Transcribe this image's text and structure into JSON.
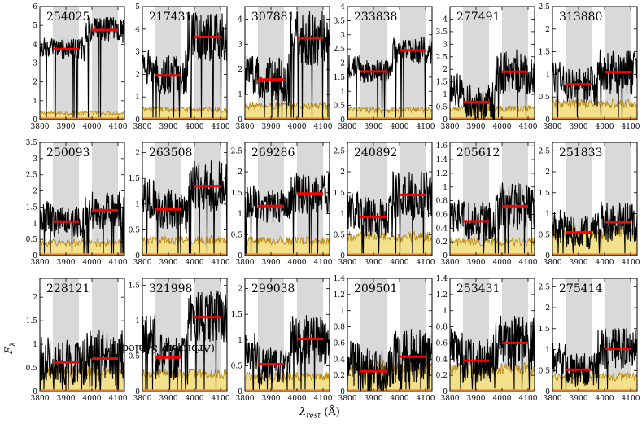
{
  "figure": {
    "xlabel_symbol": "λ",
    "xlabel_sub": "rest",
    "xlabel_unit": " (Å)",
    "ylabel_symbol": "F",
    "ylabel_sub": "λ",
    "ylabel_text": " (Arbitrary Scaled)",
    "colors": {
      "shade": "#d9d9d9",
      "error_fill": "#f3e08a",
      "error_line": "#b8860b",
      "bottom_band": "#e07a2a",
      "mean_line": "#ff0000",
      "spectrum": "#000000"
    }
  },
  "chart_data": [
    {
      "type": "line",
      "title": "254025",
      "x_range": [
        3800,
        4125
      ],
      "ylim": [
        0,
        6.0
      ],
      "yticks": [
        0,
        1,
        2,
        3,
        4,
        5,
        6
      ],
      "xticks": [
        3800,
        3900,
        4000,
        4100
      ],
      "windows": [
        [
          3850,
          3950
        ],
        [
          4000,
          4100
        ]
      ],
      "blue_mean": 3.75,
      "red_mean": 4.75,
      "spectrum_base": 3.8,
      "spectrum_amp": 0.7,
      "err_level": 0.35
    },
    {
      "type": "line",
      "title": "217431",
      "x_range": [
        3800,
        4125
      ],
      "ylim": [
        0,
        5.0
      ],
      "yticks": [
        0,
        1,
        2,
        3,
        4,
        5
      ],
      "xticks": [
        3800,
        3900,
        4000,
        4100
      ],
      "windows": [
        [
          3850,
          3950
        ],
        [
          4000,
          4100
        ]
      ],
      "blue_mean": 1.95,
      "red_mean": 3.65,
      "spectrum_base": 2.2,
      "spectrum_amp": 1.1,
      "err_level": 0.45
    },
    {
      "type": "line",
      "title": "307881",
      "x_range": [
        3800,
        4125
      ],
      "ylim": [
        0,
        4.5
      ],
      "yticks": [
        0,
        1,
        2,
        3,
        4
      ],
      "xticks": [
        3800,
        3900,
        4000,
        4100
      ],
      "windows": [
        [
          3850,
          3950
        ],
        [
          4000,
          4100
        ]
      ],
      "blue_mean": 1.6,
      "red_mean": 3.25,
      "spectrum_base": 1.8,
      "spectrum_amp": 1.1,
      "err_level": 0.55
    },
    {
      "type": "line",
      "title": "233838",
      "x_range": [
        3800,
        4125
      ],
      "ylim": [
        0,
        4.0
      ],
      "yticks": [
        0,
        0.5,
        1.0,
        1.5,
        2.0,
        2.5,
        3.0,
        3.5,
        4.0
      ],
      "xticks": [
        3800,
        3900,
        4000,
        4100
      ],
      "windows": [
        [
          3850,
          3950
        ],
        [
          4000,
          4100
        ]
      ],
      "blue_mean": 1.7,
      "red_mean": 2.45,
      "spectrum_base": 1.9,
      "spectrum_amp": 0.5,
      "err_level": 0.35
    },
    {
      "type": "line",
      "title": "277491",
      "x_range": [
        3800,
        4125
      ],
      "ylim": [
        0,
        4.5
      ],
      "yticks": [
        0,
        0.5,
        1.0,
        1.5,
        2.0,
        2.5,
        3.0,
        3.5,
        4.0
      ],
      "xticks": [
        3800,
        3900,
        4000,
        4100
      ],
      "windows": [
        [
          3850,
          3950
        ],
        [
          4000,
          4100
        ]
      ],
      "blue_mean": 0.7,
      "red_mean": 1.9,
      "spectrum_base": 1.2,
      "spectrum_amp": 0.9,
      "err_level": 0.45
    },
    {
      "type": "line",
      "title": "313880",
      "x_range": [
        3800,
        4125
      ],
      "ylim": [
        0,
        2.5
      ],
      "yticks": [
        0,
        0.5,
        1.0,
        1.5,
        2.0,
        2.5
      ],
      "xticks": [
        3800,
        3900,
        4000,
        4100
      ],
      "windows": [
        [
          3850,
          3950
        ],
        [
          4000,
          4100
        ]
      ],
      "blue_mean": 0.78,
      "red_mean": 1.05,
      "spectrum_base": 0.9,
      "spectrum_amp": 0.5,
      "err_level": 0.35
    },
    {
      "type": "line",
      "title": "250093",
      "x_range": [
        3800,
        4125
      ],
      "ylim": [
        0,
        3.5
      ],
      "yticks": [
        0,
        0.5,
        1.0,
        1.5,
        2.0,
        2.5,
        3.0,
        3.5
      ],
      "xticks": [
        3800,
        3900,
        4000,
        4100
      ],
      "windows": [
        [
          3850,
          3950
        ],
        [
          4000,
          4100
        ]
      ],
      "blue_mean": 1.05,
      "red_mean": 1.4,
      "spectrum_base": 1.2,
      "spectrum_amp": 0.6,
      "err_level": 0.4
    },
    {
      "type": "line",
      "title": "263508",
      "x_range": [
        3800,
        4125
      ],
      "ylim": [
        0,
        2.2
      ],
      "yticks": [
        0,
        0.5,
        1.0,
        1.5,
        2.0
      ],
      "xticks": [
        3800,
        3900,
        4000,
        4100
      ],
      "windows": [
        [
          3850,
          3950
        ],
        [
          4000,
          4100
        ]
      ],
      "blue_mean": 0.9,
      "red_mean": 1.35,
      "spectrum_base": 1.1,
      "spectrum_amp": 0.5,
      "err_level": 0.3
    },
    {
      "type": "line",
      "title": "269286",
      "x_range": [
        3800,
        4125
      ],
      "ylim": [
        0,
        2.7
      ],
      "yticks": [
        0,
        0.5,
        1.0,
        1.5,
        2.0,
        2.5
      ],
      "xticks": [
        3800,
        3900,
        4000,
        4100
      ],
      "windows": [
        [
          3850,
          3950
        ],
        [
          4000,
          4100
        ]
      ],
      "blue_mean": 1.18,
      "red_mean": 1.48,
      "spectrum_base": 1.3,
      "spectrum_amp": 0.5,
      "err_level": 0.35
    },
    {
      "type": "line",
      "title": "240892",
      "x_range": [
        3800,
        4125
      ],
      "ylim": [
        0,
        2.7
      ],
      "yticks": [
        0,
        0.5,
        1.0,
        1.5,
        2.0,
        2.5
      ],
      "xticks": [
        3800,
        3900,
        4000,
        4100
      ],
      "windows": [
        [
          3850,
          3950
        ],
        [
          4000,
          4100
        ]
      ],
      "blue_mean": 0.92,
      "red_mean": 1.45,
      "spectrum_base": 1.1,
      "spectrum_amp": 0.6,
      "err_level": 0.45
    },
    {
      "type": "line",
      "title": "205612",
      "x_range": [
        3800,
        4125
      ],
      "ylim": [
        0,
        1.65
      ],
      "yticks": [
        0,
        0.2,
        0.4,
        0.6,
        0.8,
        1.0,
        1.2,
        1.4,
        1.6
      ],
      "xticks": [
        3800,
        3900,
        4000,
        4100
      ],
      "windows": [
        [
          3850,
          3950
        ],
        [
          4000,
          4100
        ]
      ],
      "blue_mean": 0.5,
      "red_mean": 0.72,
      "spectrum_base": 0.6,
      "spectrum_amp": 0.35,
      "err_level": 0.2
    },
    {
      "type": "line",
      "title": "251833",
      "x_range": [
        3800,
        4125
      ],
      "ylim": [
        0,
        2.7
      ],
      "yticks": [
        0,
        0.5,
        1.0,
        1.5,
        2.0,
        2.5
      ],
      "xticks": [
        3800,
        3900,
        4000,
        4100
      ],
      "windows": [
        [
          3850,
          3950
        ],
        [
          4000,
          4100
        ]
      ],
      "blue_mean": 0.55,
      "red_mean": 0.8,
      "spectrum_base": 0.7,
      "spectrum_amp": 0.5,
      "err_level": 0.55
    },
    {
      "type": "line",
      "title": "228121",
      "x_range": [
        3800,
        4125
      ],
      "ylim": [
        0,
        2.4
      ],
      "yticks": [
        0,
        0.5,
        1.0,
        1.5,
        2.0
      ],
      "xticks": [
        3800,
        3900,
        4000,
        4100
      ],
      "windows": [
        [
          3850,
          3950
        ],
        [
          4000,
          4100
        ]
      ],
      "blue_mean": 0.62,
      "red_mean": 0.7,
      "spectrum_base": 0.7,
      "spectrum_amp": 0.6,
      "err_level": 0.45
    },
    {
      "type": "line",
      "title": "321998",
      "x_range": [
        3800,
        4125
      ],
      "ylim": [
        0,
        1.6
      ],
      "yticks": [
        0,
        0.5,
        1.0,
        1.5
      ],
      "xticks": [
        3800,
        3900,
        4000,
        4100
      ],
      "windows": [
        [
          3850,
          3950
        ],
        [
          4000,
          4100
        ]
      ],
      "blue_mean": 0.48,
      "red_mean": 1.05,
      "spectrum_base": 0.8,
      "spectrum_amp": 0.4,
      "err_level": 0.25
    },
    {
      "type": "line",
      "title": "299038",
      "x_range": [
        3800,
        4125
      ],
      "ylim": [
        0,
        2.2
      ],
      "yticks": [
        0,
        0.5,
        1.0,
        1.5,
        2.0
      ],
      "xticks": [
        3800,
        3900,
        4000,
        4100
      ],
      "windows": [
        [
          3850,
          3950
        ],
        [
          4000,
          4100
        ]
      ],
      "blue_mean": 0.53,
      "red_mean": 1.02,
      "spectrum_base": 0.8,
      "spectrum_amp": 0.5,
      "err_level": 0.3
    },
    {
      "type": "line",
      "title": "209501",
      "x_range": [
        3800,
        4125
      ],
      "ylim": [
        0,
        1.4
      ],
      "yticks": [
        0,
        0.2,
        0.4,
        0.6,
        0.8,
        1.0,
        1.2,
        1.4
      ],
      "xticks": [
        3800,
        3900,
        4000,
        4100
      ],
      "windows": [
        [
          3850,
          3950
        ],
        [
          4000,
          4100
        ]
      ],
      "blue_mean": 0.25,
      "red_mean": 0.43,
      "spectrum_base": 0.35,
      "spectrum_amp": 0.35,
      "err_level": 0.3
    },
    {
      "type": "line",
      "title": "253431",
      "x_range": [
        3800,
        4125
      ],
      "ylim": [
        0,
        1.4
      ],
      "yticks": [
        0,
        0.2,
        0.4,
        0.6,
        0.8,
        1.0,
        1.2,
        1.4
      ],
      "xticks": [
        3800,
        3900,
        4000,
        4100
      ],
      "windows": [
        [
          3850,
          3950
        ],
        [
          4000,
          4100
        ]
      ],
      "blue_mean": 0.38,
      "red_mean": 0.6,
      "spectrum_base": 0.5,
      "spectrum_amp": 0.35,
      "err_level": 0.28
    },
    {
      "type": "line",
      "title": "275414",
      "x_range": [
        3800,
        4125
      ],
      "ylim": [
        0,
        2.7
      ],
      "yticks": [
        0,
        0.5,
        1.0,
        1.5,
        2.0,
        2.5
      ],
      "xticks": [
        3800,
        3900,
        4000,
        4100
      ],
      "windows": [
        [
          3850,
          3950
        ],
        [
          4000,
          4100
        ]
      ],
      "blue_mean": 0.52,
      "red_mean": 1.02,
      "spectrum_base": 0.8,
      "spectrum_amp": 0.5,
      "err_level": 0.35
    }
  ]
}
